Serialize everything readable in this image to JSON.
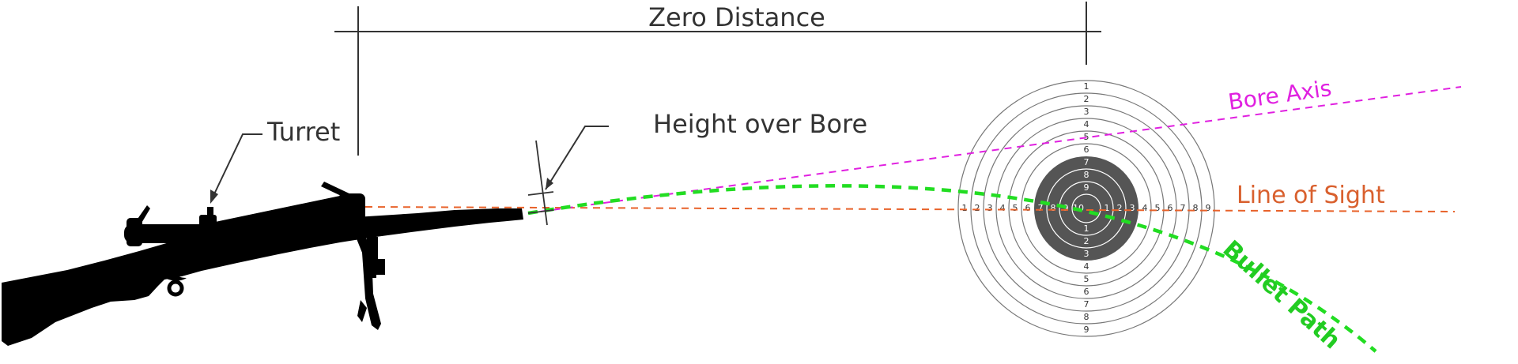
{
  "labels": {
    "zero_distance": "Zero Distance",
    "turret": "Turret",
    "height_over_bore": "Height over Bore",
    "bore_axis": "Bore Axis",
    "line_of_sight": "Line of Sight",
    "bullet_path": "Bullet Path"
  },
  "target": {
    "ring_numbers_vertical_top": [
      "1",
      "2",
      "3",
      "4",
      "5",
      "6",
      "7",
      "8",
      "9",
      "10"
    ],
    "ring_numbers_vertical_bottom": [
      "9",
      "8",
      "7",
      "6",
      "5",
      "4",
      "3",
      "2",
      "1"
    ],
    "ring_numbers_horizontal_left": [
      "1",
      "2",
      "3",
      "4",
      "5",
      "6",
      "7",
      "8",
      "9",
      "10"
    ],
    "ring_numbers_horizontal_right": [
      "9",
      "8",
      "7",
      "6",
      "5",
      "4",
      "3",
      "2",
      "1"
    ]
  },
  "colors": {
    "bore_axis": "#e020e0",
    "line_of_sight": "#e8622a",
    "bullet_path": "#22dd22",
    "line_of_sight_label": "#d9602e",
    "bullet_path_label": "#22cc22",
    "bore_axis_label": "#e020e0",
    "annotation": "#333333",
    "rifle": "#000000",
    "target_black": "#555555"
  },
  "icons": {
    "rifle": "scoped-rifle-on-bipod-icon",
    "target": "shooting-target-icon"
  }
}
